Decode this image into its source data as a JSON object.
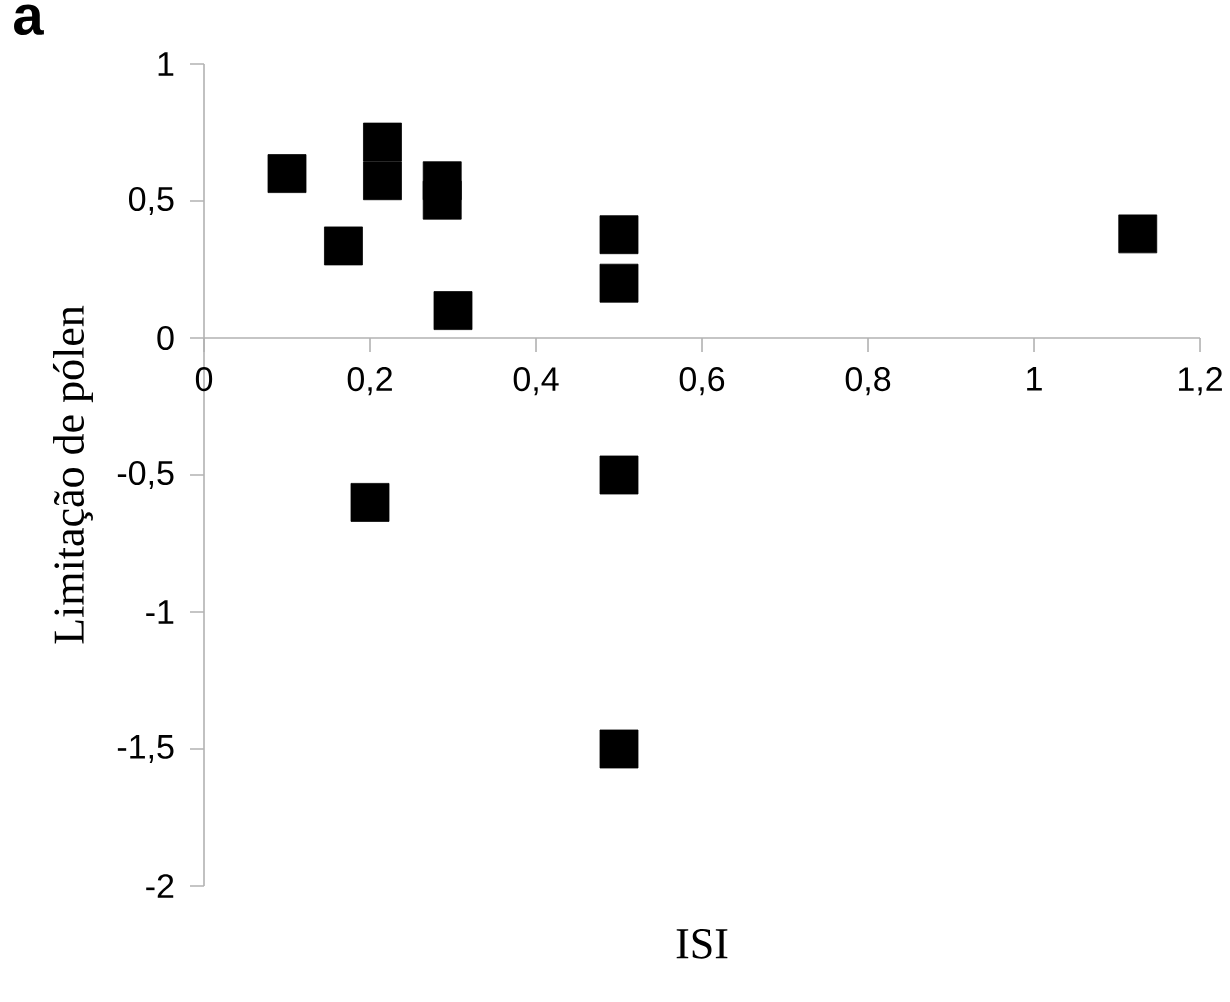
{
  "chart_data": {
    "type": "scatter",
    "xlabel": "ISI",
    "ylabel": "Limitação de pólen",
    "annotations": [
      "a"
    ],
    "x": [
      0.1,
      0.168,
      0.215,
      0.215,
      0.287,
      0.287,
      0.3,
      0.5,
      0.5,
      0.2,
      0.5,
      0.5,
      1.125
    ],
    "values": [
      0.6,
      0.336,
      0.715,
      0.574,
      0.574,
      0.503,
      0.1,
      0.377,
      0.2,
      -0.6,
      -0.5,
      -1.5,
      0.38
    ],
    "color": "#000000",
    "marker": "square",
    "xlim": [
      0,
      1.2
    ],
    "ylim": [
      -2,
      1
    ],
    "xticks": [
      0,
      {
        "value": 0.2,
        "label": "0,2"
      },
      {
        "value": 0.4,
        "label": "0,4"
      },
      {
        "value": 0.6,
        "label": "0,6"
      },
      {
        "value": 0.8,
        "label": "0,8"
      },
      1,
      {
        "value": 1.2,
        "label": "1,2"
      }
    ],
    "yticks": [
      -2,
      {
        "value": -1.5,
        "label": "-1,5"
      },
      -1,
      {
        "value": -0.5,
        "label": "-0,5"
      },
      0,
      {
        "value": 0.5,
        "label": "0,5"
      },
      1
    ]
  }
}
